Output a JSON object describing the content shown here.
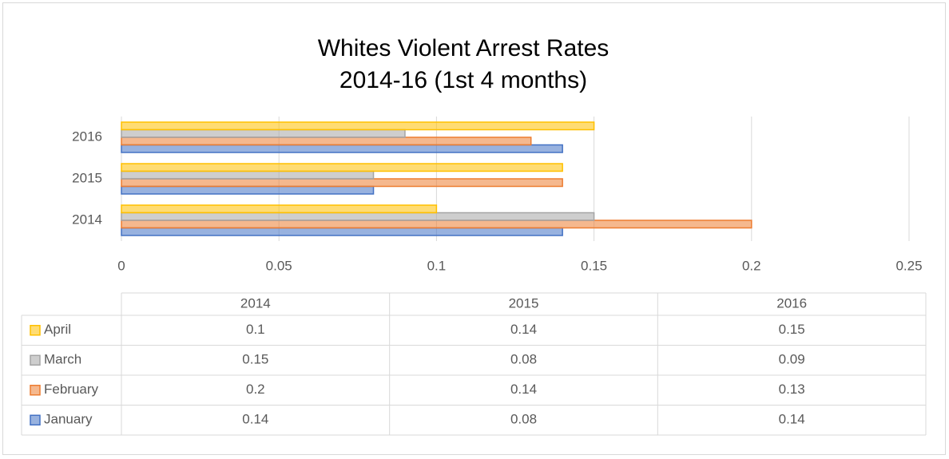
{
  "chart_data": {
    "type": "bar",
    "orientation": "horizontal",
    "title": "Whites Violent Arrest Rates",
    "subtitle": "2014-16 (1st 4 months)",
    "categories": [
      "2014",
      "2015",
      "2016"
    ],
    "series": [
      {
        "name": "January",
        "color": "#4472c4",
        "values": [
          0.14,
          0.08,
          0.14
        ]
      },
      {
        "name": "February",
        "color": "#ed7d31",
        "values": [
          0.2,
          0.14,
          0.13
        ]
      },
      {
        "name": "March",
        "color": "#a5a5a5",
        "values": [
          0.15,
          0.08,
          0.09
        ]
      },
      {
        "name": "April",
        "color": "#ffc000",
        "values": [
          0.1,
          0.14,
          0.15
        ]
      }
    ],
    "xlim": [
      0,
      0.25
    ],
    "xticks": [
      0,
      0.05,
      0.1,
      0.15,
      0.2,
      0.25
    ],
    "grid": true,
    "data_table": true
  }
}
